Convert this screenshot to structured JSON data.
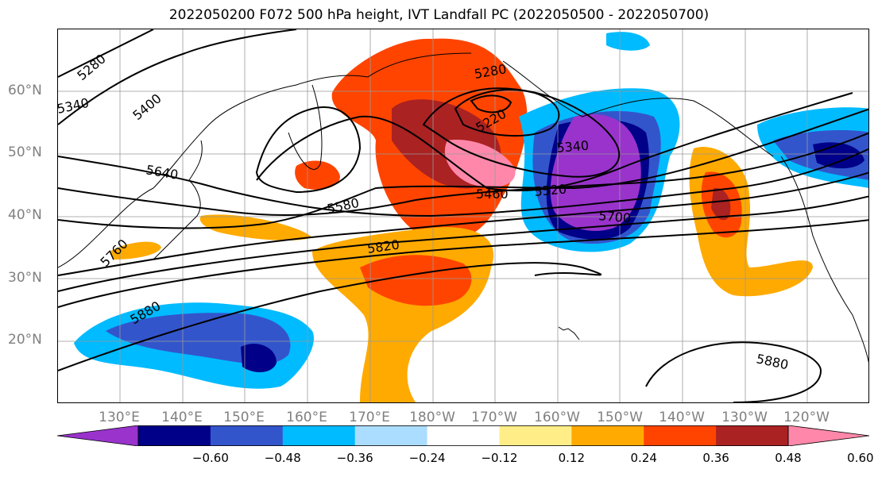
{
  "title": "2022050200 F072 500 hPa height, IVT Landfall PC (2022050500 - 2022050700)",
  "map": {
    "type": "map",
    "projection": "PlateCarree",
    "lon_range": [
      120,
      250
    ],
    "lat_range": [
      10,
      70
    ],
    "lat_labels": [
      {
        "lat": 60,
        "text": "60°N"
      },
      {
        "lat": 50,
        "text": "50°N"
      },
      {
        "lat": 40,
        "text": "40°N"
      },
      {
        "lat": 30,
        "text": "30°N"
      },
      {
        "lat": 20,
        "text": "20°N"
      }
    ],
    "lon_labels": [
      {
        "lon": 130,
        "text": "130°E"
      },
      {
        "lon": 140,
        "text": "140°E"
      },
      {
        "lon": 150,
        "text": "150°E"
      },
      {
        "lon": 160,
        "text": "160°E"
      },
      {
        "lon": 170,
        "text": "170°E"
      },
      {
        "lon": 180,
        "text": "180°W"
      },
      {
        "lon": 190,
        "text": "170°W"
      },
      {
        "lon": 200,
        "text": "160°W"
      },
      {
        "lon": 210,
        "text": "150°W"
      },
      {
        "lon": 220,
        "text": "140°W"
      },
      {
        "lon": 230,
        "text": "130°W"
      },
      {
        "lon": 240,
        "text": "120°W"
      }
    ],
    "contour_labels": [
      "5280",
      "5400",
      "5640",
      "5580",
      "5820",
      "5880",
      "5280",
      "5220",
      "5340",
      "5460",
      "5520",
      "5700",
      "5760",
      "5880",
      "5340"
    ],
    "colorbar": {
      "colors": [
        "#9933cc",
        "#000088",
        "#3355cc",
        "#00bbff",
        "#aaddff",
        "#ffffff",
        "#ffee88",
        "#ffaa00",
        "#ff4400",
        "#aa2222",
        "#ff88aa"
      ],
      "ticks": [
        "−0.60",
        "−0.48",
        "−0.36",
        "−0.24",
        "−0.12",
        "0.12",
        "0.24",
        "0.36",
        "0.48",
        "0.60"
      ],
      "extend": "both"
    }
  }
}
